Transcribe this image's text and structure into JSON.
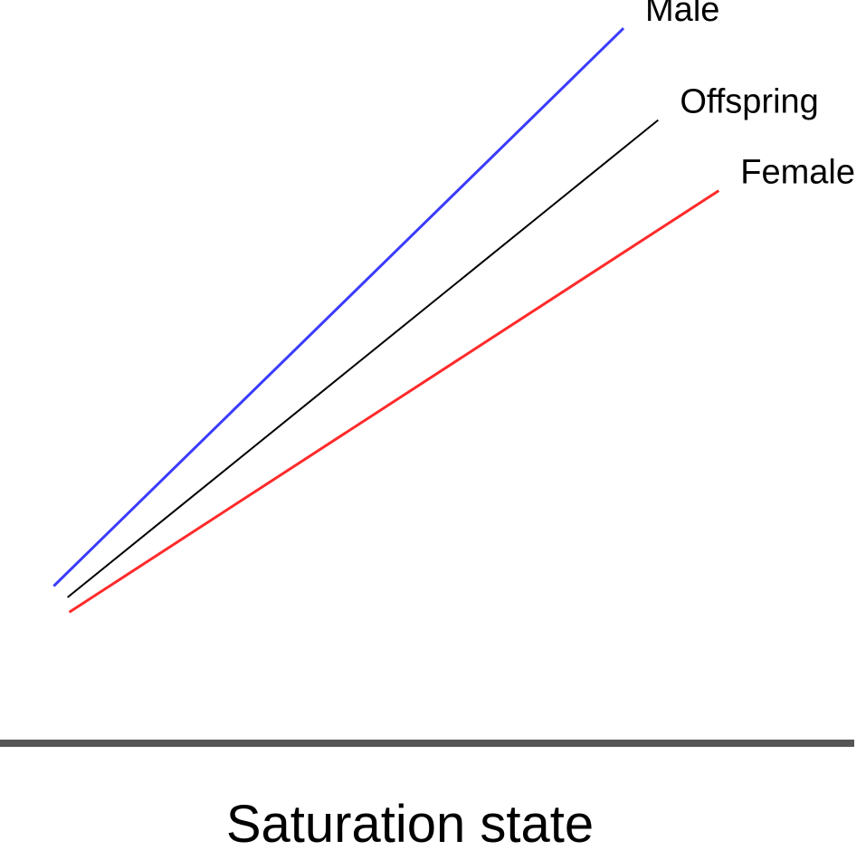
{
  "chart_data": {
    "type": "line",
    "title": "",
    "xlabel": "Saturation state",
    "ylabel": "",
    "xlim": [
      0,
      10
    ],
    "ylim": [
      0,
      10
    ],
    "grid": false,
    "legend": "inline-end-labels",
    "series": [
      {
        "name": "Male",
        "color": "#3b3bff",
        "points": [
          [
            0.62,
            1.7
          ],
          [
            7.2,
            9.6
          ]
        ]
      },
      {
        "name": "Offspring",
        "color": "#000000",
        "points": [
          [
            0.78,
            1.54
          ],
          [
            7.6,
            8.3
          ]
        ]
      },
      {
        "name": "Female",
        "color": "#ff2a2a",
        "points": [
          [
            0.8,
            1.33
          ],
          [
            8.3,
            7.3
          ]
        ]
      }
    ]
  },
  "colors": {
    "axis_line": "#555555",
    "background": "#ffffff"
  }
}
